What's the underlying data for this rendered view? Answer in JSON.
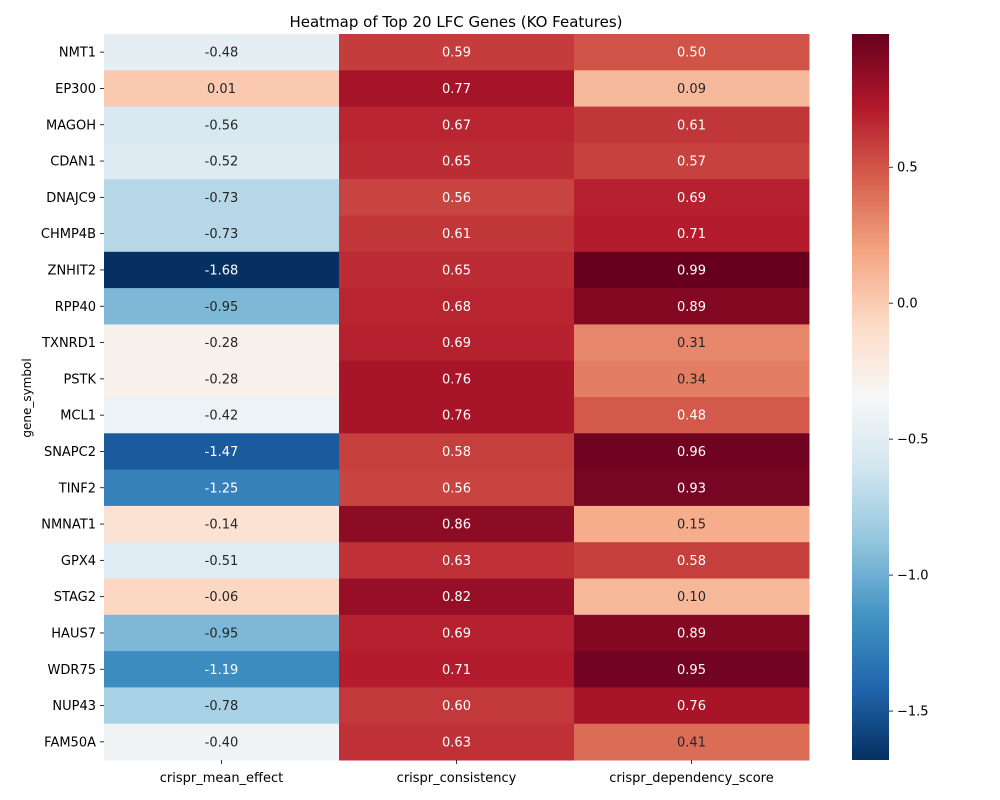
{
  "chart_data": {
    "type": "heatmap",
    "title": "Heatmap of Top 20 LFC Genes (KO Features)",
    "ylabel": "gene_symbol",
    "xlabel": "",
    "x": [
      "crispr_mean_effect",
      "crispr_consistency",
      "crispr_dependency_score"
    ],
    "y": [
      "NMT1",
      "EP300",
      "MAGOH",
      "CDAN1",
      "DNAJC9",
      "CHMP4B",
      "ZNHIT2",
      "RPP40",
      "TXNRD1",
      "PSTK",
      "MCL1",
      "SNAPC2",
      "TINF2",
      "NMNAT1",
      "GPX4",
      "STAG2",
      "HAUS7",
      "WDR75",
      "NUP43",
      "FAM50A"
    ],
    "values": [
      [
        -0.48,
        0.59,
        0.5
      ],
      [
        0.01,
        0.77,
        0.09
      ],
      [
        -0.56,
        0.67,
        0.61
      ],
      [
        -0.52,
        0.65,
        0.57
      ],
      [
        -0.73,
        0.56,
        0.69
      ],
      [
        -0.73,
        0.61,
        0.71
      ],
      [
        -1.68,
        0.65,
        0.99
      ],
      [
        -0.95,
        0.68,
        0.89
      ],
      [
        -0.28,
        0.69,
        0.31
      ],
      [
        -0.28,
        0.76,
        0.34
      ],
      [
        -0.42,
        0.76,
        0.48
      ],
      [
        -1.47,
        0.58,
        0.96
      ],
      [
        -1.25,
        0.56,
        0.93
      ],
      [
        -0.14,
        0.86,
        0.15
      ],
      [
        -0.51,
        0.63,
        0.58
      ],
      [
        -0.06,
        0.82,
        0.1
      ],
      [
        -0.95,
        0.69,
        0.89
      ],
      [
        -1.19,
        0.71,
        0.95
      ],
      [
        -0.78,
        0.6,
        0.76
      ],
      [
        -0.4,
        0.63,
        0.41
      ]
    ],
    "value_labels": [
      [
        "-0.48",
        "0.59",
        "0.50"
      ],
      [
        "0.01",
        "0.77",
        "0.09"
      ],
      [
        "-0.56",
        "0.67",
        "0.61"
      ],
      [
        "-0.52",
        "0.65",
        "0.57"
      ],
      [
        "-0.73",
        "0.56",
        "0.69"
      ],
      [
        "-0.73",
        "0.61",
        "0.71"
      ],
      [
        "-1.68",
        "0.65",
        "0.99"
      ],
      [
        "-0.95",
        "0.68",
        "0.89"
      ],
      [
        "-0.28",
        "0.69",
        "0.31"
      ],
      [
        "-0.28",
        "0.76",
        "0.34"
      ],
      [
        "-0.42",
        "0.76",
        "0.48"
      ],
      [
        "-1.47",
        "0.58",
        "0.96"
      ],
      [
        "-1.25",
        "0.56",
        "0.93"
      ],
      [
        "-0.14",
        "0.86",
        "0.15"
      ],
      [
        "-0.51",
        "0.63",
        "0.58"
      ],
      [
        "-0.06",
        "0.82",
        "0.10"
      ],
      [
        "-0.95",
        "0.69",
        "0.89"
      ],
      [
        "-1.19",
        "0.71",
        "0.95"
      ],
      [
        "-0.78",
        "0.60",
        "0.76"
      ],
      [
        "-0.40",
        "0.63",
        "0.41"
      ]
    ],
    "colormap": "RdBu_r",
    "colormap_stops": [
      "#053061",
      "#2166ac",
      "#4393c3",
      "#92c5de",
      "#d1e5f0",
      "#f7f7f7",
      "#fddbc7",
      "#f4a582",
      "#d6604d",
      "#b2182b",
      "#67001f"
    ],
    "vmin": -1.68,
    "vmax": 0.99,
    "colorbar": {
      "ticks": [
        0.5,
        0.0,
        -0.5,
        -1.0,
        -1.5
      ],
      "tick_labels": [
        "0.5",
        "0.0",
        "−0.5",
        "−1.0",
        "−1.5"
      ]
    },
    "grid": false,
    "legend": "colorbar-right"
  }
}
